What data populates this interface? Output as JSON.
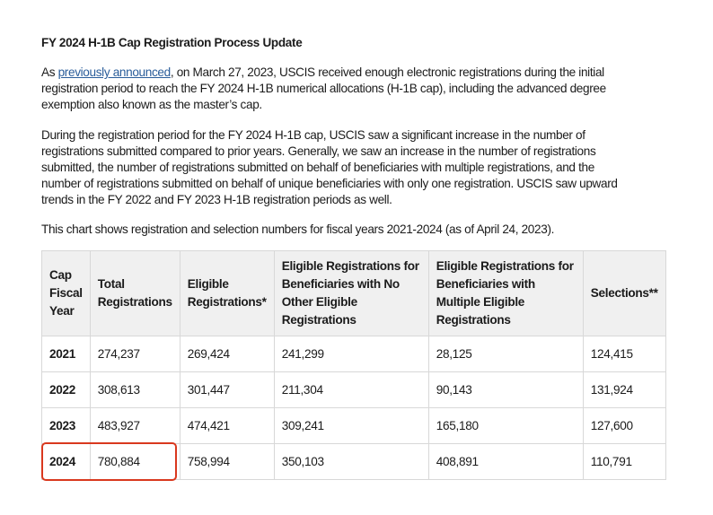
{
  "title": "FY 2024 H-1B Cap Registration Process Update",
  "para1": {
    "prefix": "As ",
    "link": "previously announced",
    "line1_rest": ", on March 27, 2023, USCIS received enough electronic registrations during the initial",
    "line2": "registration period to reach the FY 2024 H-1B numerical allocations (H-1B cap), including the advanced degree",
    "line3": "exemption also known as the master’s cap."
  },
  "para2": {
    "lines": [
      "During the registration period for the FY 2024 H-1B cap, USCIS saw a significant increase in the number of",
      "registrations submitted compared to prior years. Generally, we saw an increase in the number of registrations",
      "submitted, the number of registrations submitted on behalf of beneficiaries with multiple registrations, and the",
      "number of registrations submitted on behalf of unique beneficiaries with only one registration. USCIS saw upward",
      "trends in the FY 2022 and FY 2023 H-1B registration periods as well."
    ]
  },
  "para3": "This chart shows registration and selection numbers for fiscal years 2021-2024 (as of April 24, 2023).",
  "table": {
    "headers": [
      [
        "Cap",
        "Fiscal",
        "Year"
      ],
      [
        "Total",
        "Registrations"
      ],
      [
        "Eligible",
        "Registrations*"
      ],
      [
        "Eligible Registrations for",
        "Beneficiaries with No",
        "Other Eligible",
        "Registrations"
      ],
      [
        "Eligible Registrations for",
        "Beneficiaries with",
        "Multiple Eligible",
        "Registrations"
      ],
      [
        "Selections**"
      ]
    ],
    "rows": [
      [
        "2021",
        "274,237",
        "269,424",
        "241,299",
        "28,125",
        "124,415"
      ],
      [
        "2022",
        "308,613",
        "301,447",
        "211,304",
        "90,143",
        "131,924"
      ],
      [
        "2023",
        "483,927",
        "474,421",
        "309,241",
        "165,180",
        "127,600"
      ],
      [
        "2024",
        "780,884",
        "758,994",
        "350,103",
        "408,891",
        "110,791"
      ]
    ],
    "highlight_color": "#d9381e"
  }
}
